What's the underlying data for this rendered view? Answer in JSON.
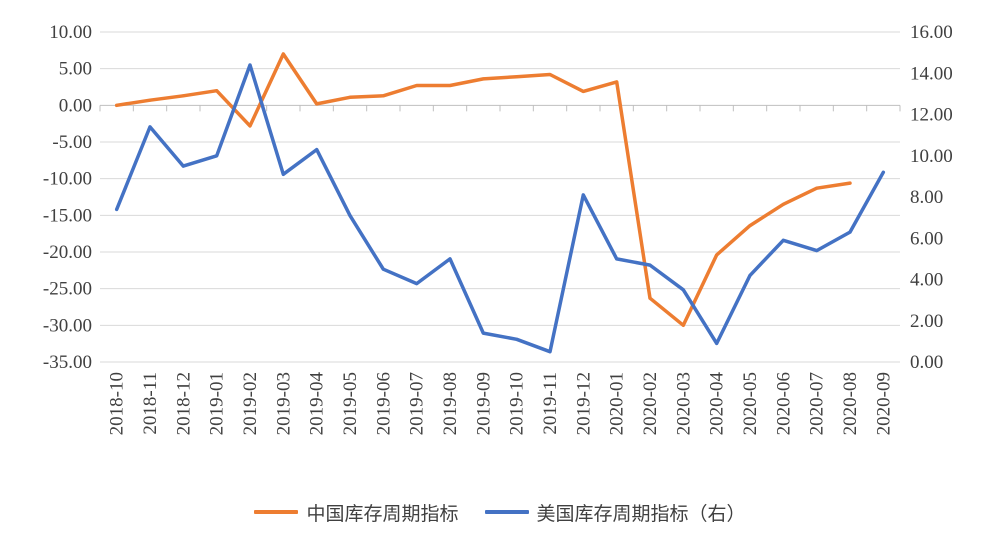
{
  "chart_data": {
    "type": "line",
    "title": "",
    "xlabel": "",
    "ylabel": "",
    "categories": [
      "2018-10",
      "2018-11",
      "2018-12",
      "2019-01",
      "2019-02",
      "2019-03",
      "2019-04",
      "2019-05",
      "2019-06",
      "2019-07",
      "2019-08",
      "2019-09",
      "2019-10",
      "2019-11",
      "2019-12",
      "2020-01",
      "2020-02",
      "2020-03",
      "2020-04",
      "2020-05",
      "2020-06",
      "2020-07",
      "2020-08",
      "2020-09"
    ],
    "y_left": {
      "ylim": [
        -35,
        10
      ],
      "ticks": [
        10,
        5,
        0,
        -5,
        -10,
        -15,
        -20,
        -25,
        -30,
        -35
      ],
      "tick_labels": [
        "10.00",
        "5.00",
        "0.00",
        "-5.00",
        "-10.00",
        "-15.00",
        "-20.00",
        "-25.00",
        "-30.00",
        "-35.00"
      ]
    },
    "y_right": {
      "ylim": [
        0,
        16
      ],
      "ticks": [
        16,
        14,
        12,
        10,
        8,
        6,
        4,
        2,
        0
      ],
      "tick_labels": [
        "16.00",
        "14.00",
        "12.00",
        "10.00",
        "8.00",
        "6.00",
        "4.00",
        "2.00",
        "0.00"
      ]
    },
    "grid": true,
    "legend_position": "bottom",
    "series": [
      {
        "name": "中国库存周期指标",
        "axis": "left",
        "color": "#ED7D31",
        "values": [
          0.0,
          0.7,
          1.3,
          2.0,
          -2.8,
          7.0,
          0.2,
          1.1,
          1.3,
          2.7,
          2.7,
          3.6,
          3.9,
          4.2,
          1.9,
          3.2,
          -26.3,
          -30.0,
          -20.4,
          -16.4,
          -13.5,
          -11.3,
          -10.6,
          null
        ]
      },
      {
        "name": "美国库存周期指标（右）",
        "axis": "right",
        "color": "#4472C4",
        "values": [
          7.4,
          11.4,
          9.5,
          10.0,
          14.4,
          9.1,
          10.3,
          7.1,
          4.5,
          3.8,
          5.0,
          1.4,
          1.1,
          0.5,
          8.1,
          5.0,
          4.7,
          3.5,
          0.9,
          4.2,
          5.9,
          5.4,
          6.3,
          9.2
        ]
      }
    ]
  }
}
